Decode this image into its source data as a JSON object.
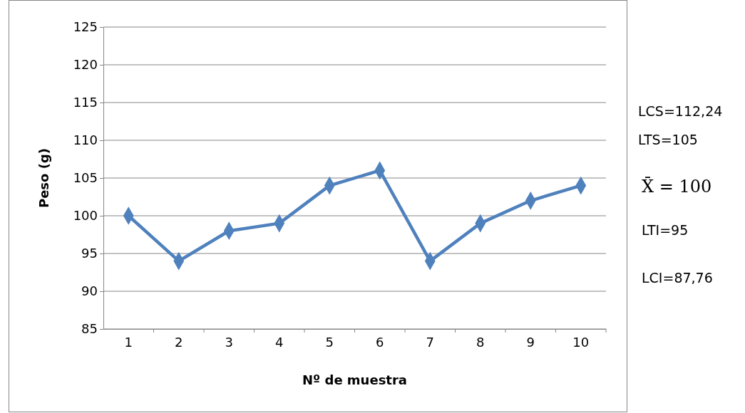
{
  "chart_data": {
    "type": "line",
    "xlabel": "Nº de muestra",
    "ylabel": "Peso (g)",
    "categories": [
      "1",
      "2",
      "3",
      "4",
      "5",
      "6",
      "7",
      "8",
      "9",
      "10"
    ],
    "series": [
      {
        "color": "#4f81bd",
        "values": [
          100,
          94,
          98,
          99,
          104,
          106,
          94,
          99,
          102,
          104
        ]
      }
    ],
    "ylim": [
      85,
      125
    ],
    "yticks": [
      85,
      90,
      95,
      100,
      105,
      110,
      115,
      120,
      125
    ],
    "grid": "y",
    "marker": "diamond",
    "line_style": "solid",
    "annotations": [
      "LCS=112,24",
      "LTS=105",
      "X̄ = 100",
      "LTI=95",
      "LCI=87,76"
    ]
  }
}
